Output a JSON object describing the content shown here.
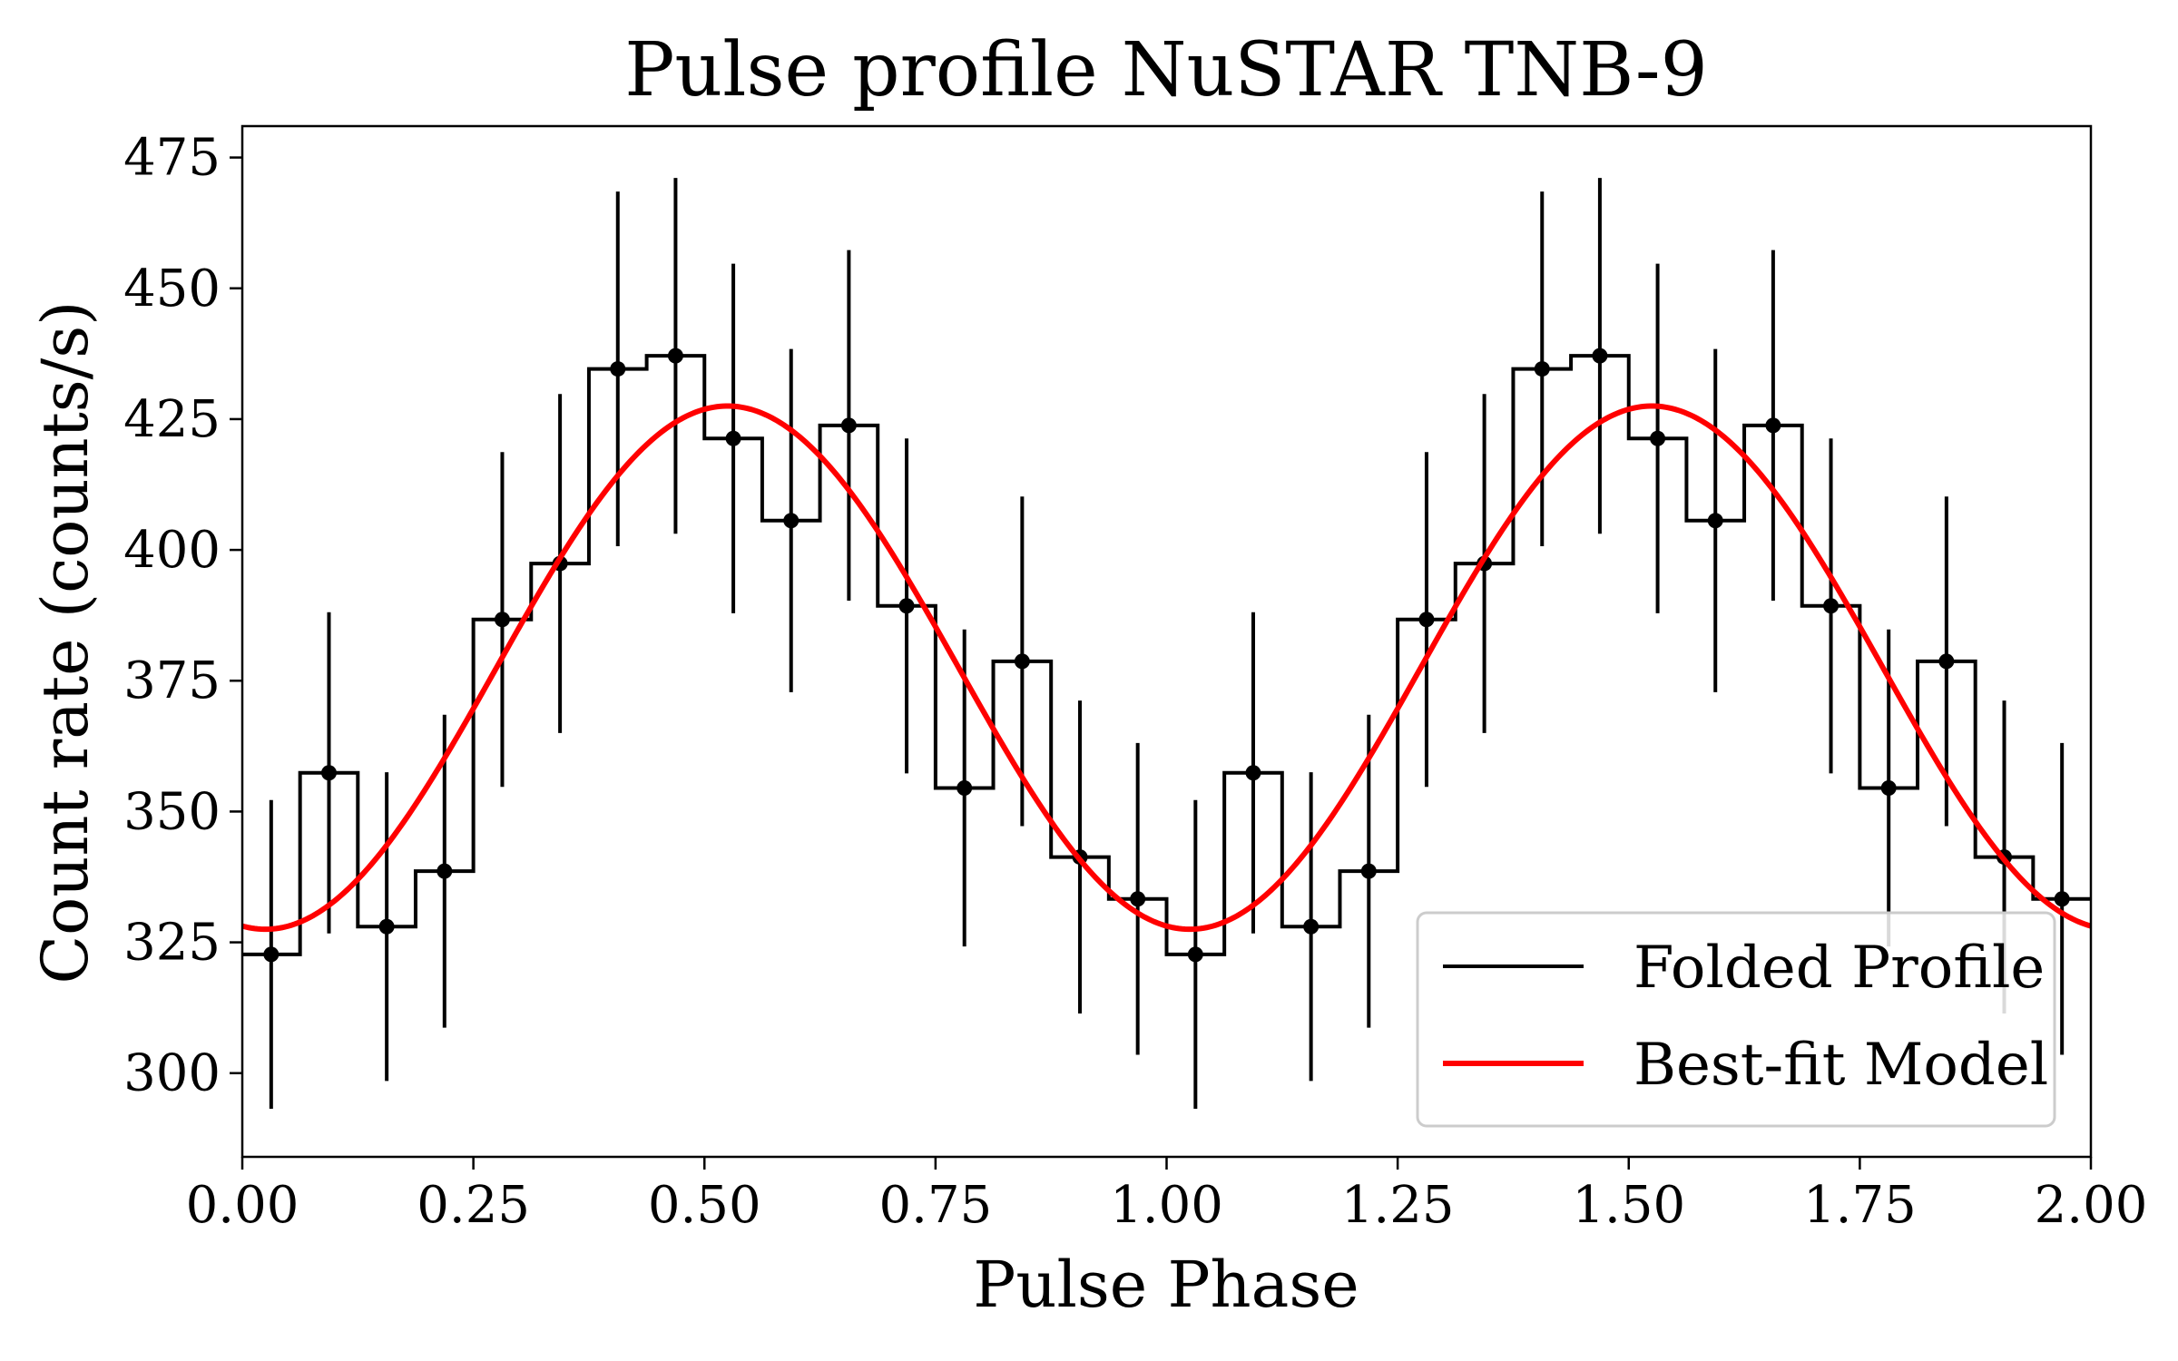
{
  "chart_data": {
    "type": "line",
    "title": "Pulse profile NuSTAR TNB-9",
    "xlabel": "Pulse Phase",
    "ylabel": "Count rate (counts/s)",
    "xlim": [
      0.0,
      2.0
    ],
    "ylim": [
      284,
      481
    ],
    "xticks": [
      0.0,
      0.25,
      0.5,
      0.75,
      1.0,
      1.25,
      1.5,
      1.75,
      2.0
    ],
    "xtick_labels": [
      "0.00",
      "0.25",
      "0.50",
      "0.75",
      "1.00",
      "1.25",
      "1.50",
      "1.75",
      "2.00"
    ],
    "yticks": [
      300,
      325,
      350,
      375,
      400,
      425,
      450,
      475
    ],
    "ytick_labels": [
      "300",
      "325",
      "350",
      "375",
      "400",
      "425",
      "450",
      "475"
    ],
    "grid": false,
    "legend_position": "bottom-right",
    "bin_width": 0.0625,
    "series": [
      {
        "name": "Folded Profile",
        "style": "step",
        "color": "#000000",
        "x": [
          0.03125,
          0.09375,
          0.15625,
          0.21875,
          0.28125,
          0.34375,
          0.40625,
          0.46875,
          0.53125,
          0.59375,
          0.65625,
          0.71875,
          0.78125,
          0.84375,
          0.90625,
          0.96875,
          1.03125,
          1.09375,
          1.15625,
          1.21875,
          1.28125,
          1.34375,
          1.40625,
          1.46875,
          1.53125,
          1.59375,
          1.65625,
          1.71875,
          1.78125,
          1.84375,
          1.90625,
          1.96875
        ],
        "values": [
          322.7,
          357.4,
          328.0,
          338.6,
          386.7,
          397.4,
          434.6,
          437.1,
          421.3,
          405.6,
          423.8,
          389.3,
          354.5,
          378.7,
          341.3,
          333.3,
          322.7,
          357.4,
          328.0,
          338.6,
          386.7,
          397.4,
          434.6,
          437.1,
          421.3,
          405.6,
          423.8,
          389.3,
          354.5,
          378.7,
          341.3,
          333.3
        ],
        "errors": [
          29.5,
          30.7,
          29.5,
          29.9,
          32.0,
          32.4,
          33.9,
          34.0,
          33.4,
          32.8,
          33.5,
          32.0,
          30.3,
          31.5,
          29.9,
          29.8,
          29.5,
          30.7,
          29.5,
          29.9,
          32.0,
          32.4,
          33.9,
          34.0,
          33.4,
          32.8,
          33.5,
          32.0,
          30.3,
          31.5,
          29.9,
          29.8
        ]
      },
      {
        "name": "Best-fit Model",
        "style": "sine",
        "color": "#ff0000",
        "mean": 377.5,
        "amplitude": 50.0,
        "peak_phase": 0.525,
        "period": 1.0
      }
    ]
  }
}
